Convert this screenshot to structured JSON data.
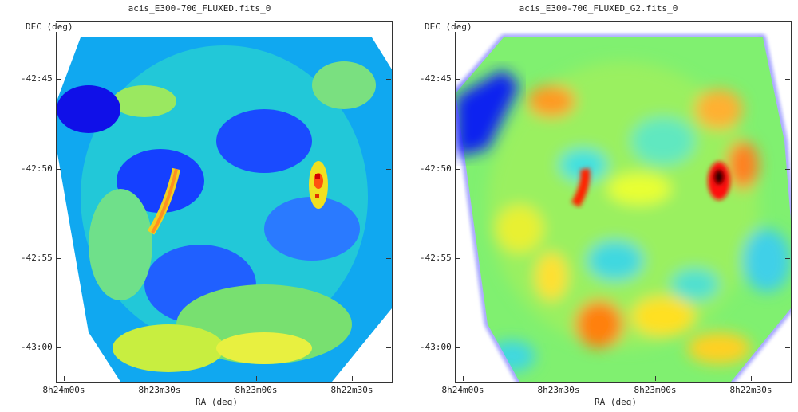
{
  "panels": [
    {
      "title": "acis_E300-700_FLUXED.fits_0",
      "y_axis_label": "DEC (deg)",
      "x_axis_label": "RA (deg)",
      "y_ticks": [
        "-42:45",
        "-42:50",
        "-42:55",
        "-43:00"
      ],
      "x_ticks": [
        "8h24m00s",
        "8h23m30s",
        "8h23m00s",
        "8h22m30s"
      ],
      "style": "pixelated"
    },
    {
      "title": "acis_E300-700_FLUXED_G2.fits_0",
      "y_axis_label": "DEC (deg)",
      "x_axis_label": "RA (deg)",
      "y_ticks": [
        "-42:45",
        "-42:50",
        "-42:55",
        "-43:00"
      ],
      "x_ticks": [
        "8h24m00s",
        "8h23m30s",
        "8h23m00s",
        "8h22m30s"
      ],
      "style": "smoothed"
    }
  ],
  "colors": {
    "colormap": [
      "#0000ff",
      "#00d4ff",
      "#00ff80",
      "#ffff00",
      "#ff8000",
      "#ff0000",
      "#000000"
    ]
  }
}
